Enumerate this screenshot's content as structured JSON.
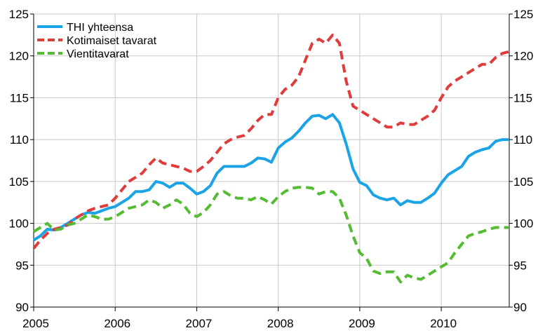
{
  "chart_data": {
    "type": "line",
    "title": "",
    "xlabel": "",
    "ylabel": "",
    "xlim": [
      2005.0,
      2010.8333
    ],
    "ylim": [
      90,
      125
    ],
    "yticks": [
      "90",
      "95",
      "100",
      "105",
      "110",
      "115",
      "120",
      "125"
    ],
    "xticks": [
      "2005",
      "2006",
      "2007",
      "2008",
      "2009",
      "2010"
    ],
    "grid": true,
    "dual_y_axis_labels": true,
    "legend_position": "top-left",
    "series": [
      {
        "name": "THI yhteensa",
        "color": "#1aa3e6",
        "dash": "solid",
        "x": [
          2005.0,
          2005.083,
          2005.167,
          2005.25,
          2005.333,
          2005.417,
          2005.5,
          2005.583,
          2005.667,
          2005.75,
          2005.833,
          2005.917,
          2006.0,
          2006.083,
          2006.167,
          2006.25,
          2006.333,
          2006.417,
          2006.5,
          2006.583,
          2006.667,
          2006.75,
          2006.833,
          2006.917,
          2007.0,
          2007.083,
          2007.167,
          2007.25,
          2007.333,
          2007.417,
          2007.5,
          2007.583,
          2007.667,
          2007.75,
          2007.833,
          2007.917,
          2008.0,
          2008.083,
          2008.167,
          2008.25,
          2008.333,
          2008.417,
          2008.5,
          2008.583,
          2008.667,
          2008.75,
          2008.833,
          2008.917,
          2009.0,
          2009.083,
          2009.167,
          2009.25,
          2009.333,
          2009.417,
          2009.5,
          2009.583,
          2009.667,
          2009.75,
          2009.833,
          2009.917,
          2010.0,
          2010.083,
          2010.167,
          2010.25,
          2010.333,
          2010.417,
          2010.5,
          2010.583,
          2010.667,
          2010.75,
          2010.833
        ],
        "values": [
          98.0,
          98.5,
          99.3,
          99.2,
          99.5,
          100.0,
          100.5,
          101.0,
          101.3,
          101.2,
          101.5,
          101.8,
          102.0,
          102.5,
          103.0,
          103.8,
          103.8,
          104.0,
          105.0,
          104.8,
          104.3,
          104.8,
          104.8,
          104.2,
          103.5,
          103.8,
          104.5,
          106.0,
          106.8,
          106.8,
          106.8,
          106.8,
          107.2,
          107.8,
          107.7,
          107.3,
          109.0,
          109.7,
          110.2,
          111.0,
          112.0,
          112.8,
          112.9,
          112.5,
          113.0,
          112.0,
          109.5,
          106.5,
          104.9,
          104.5,
          103.4,
          103.0,
          102.8,
          103.0,
          102.2,
          102.7,
          102.5,
          102.5,
          103.0,
          103.6,
          104.8,
          105.8,
          106.3,
          106.8,
          108.0,
          108.5,
          108.8,
          109.0,
          109.8,
          110.0,
          110.0
        ]
      },
      {
        "name": "Kotimaiset tavarat",
        "color": "#e03c3c",
        "dash": "dashed",
        "x": [
          2005.0,
          2005.083,
          2005.167,
          2005.25,
          2005.333,
          2005.417,
          2005.5,
          2005.583,
          2005.667,
          2005.75,
          2005.833,
          2005.917,
          2006.0,
          2006.083,
          2006.167,
          2006.25,
          2006.333,
          2006.417,
          2006.5,
          2006.583,
          2006.667,
          2006.75,
          2006.833,
          2006.917,
          2007.0,
          2007.083,
          2007.167,
          2007.25,
          2007.333,
          2007.417,
          2007.5,
          2007.583,
          2007.667,
          2007.75,
          2007.833,
          2007.917,
          2008.0,
          2008.083,
          2008.167,
          2008.25,
          2008.333,
          2008.417,
          2008.5,
          2008.583,
          2008.667,
          2008.75,
          2008.833,
          2008.917,
          2009.0,
          2009.083,
          2009.167,
          2009.25,
          2009.333,
          2009.417,
          2009.5,
          2009.583,
          2009.667,
          2009.75,
          2009.833,
          2009.917,
          2010.0,
          2010.083,
          2010.167,
          2010.25,
          2010.333,
          2010.417,
          2010.5,
          2010.583,
          2010.667,
          2010.75,
          2010.833
        ],
        "values": [
          97.0,
          98.0,
          98.8,
          99.3,
          99.5,
          99.8,
          100.5,
          101.0,
          101.5,
          101.8,
          102.0,
          102.2,
          103.0,
          104.0,
          105.0,
          105.5,
          106.0,
          107.0,
          107.8,
          107.2,
          107.0,
          106.8,
          106.6,
          106.2,
          106.2,
          106.8,
          107.5,
          108.5,
          109.5,
          110.0,
          110.3,
          110.5,
          111.3,
          112.3,
          113.0,
          113.0,
          115.0,
          116.0,
          116.5,
          117.5,
          119.5,
          121.5,
          122.0,
          121.5,
          122.5,
          121.5,
          117.0,
          114.0,
          113.5,
          113.0,
          112.5,
          112.0,
          111.5,
          111.5,
          112.0,
          111.8,
          111.8,
          112.3,
          112.8,
          113.5,
          115.0,
          116.3,
          117.0,
          117.5,
          118.0,
          118.5,
          119.0,
          119.0,
          119.8,
          120.3,
          120.5
        ]
      },
      {
        "name": "Vientitavarat",
        "color": "#55bb33",
        "dash": "dashed",
        "x": [
          2005.0,
          2005.083,
          2005.167,
          2005.25,
          2005.333,
          2005.417,
          2005.5,
          2005.583,
          2005.667,
          2005.75,
          2005.833,
          2005.917,
          2006.0,
          2006.083,
          2006.167,
          2006.25,
          2006.333,
          2006.417,
          2006.5,
          2006.583,
          2006.667,
          2006.75,
          2006.833,
          2006.917,
          2007.0,
          2007.083,
          2007.167,
          2007.25,
          2007.333,
          2007.417,
          2007.5,
          2007.583,
          2007.667,
          2007.75,
          2007.833,
          2007.917,
          2008.0,
          2008.083,
          2008.167,
          2008.25,
          2008.333,
          2008.417,
          2008.5,
          2008.583,
          2008.667,
          2008.75,
          2008.833,
          2008.917,
          2009.0,
          2009.083,
          2009.167,
          2009.25,
          2009.333,
          2009.417,
          2009.5,
          2009.583,
          2009.667,
          2009.75,
          2009.833,
          2009.917,
          2010.0,
          2010.083,
          2010.167,
          2010.25,
          2010.333,
          2010.417,
          2010.5,
          2010.583,
          2010.667,
          2010.75,
          2010.833
        ],
        "values": [
          99.0,
          99.5,
          100.0,
          99.2,
          99.3,
          99.8,
          100.0,
          100.5,
          101.0,
          100.8,
          100.5,
          100.5,
          100.8,
          101.3,
          101.8,
          102.0,
          102.2,
          102.8,
          102.5,
          101.8,
          102.2,
          102.8,
          102.3,
          101.2,
          100.8,
          101.3,
          102.2,
          103.5,
          103.8,
          103.3,
          103.0,
          103.0,
          102.8,
          103.2,
          102.8,
          102.3,
          103.2,
          103.8,
          104.2,
          104.3,
          104.3,
          104.2,
          103.5,
          103.8,
          103.8,
          103.0,
          101.0,
          98.5,
          96.5,
          95.8,
          94.3,
          94.0,
          94.2,
          94.2,
          93.0,
          93.8,
          93.5,
          93.3,
          93.8,
          94.3,
          94.8,
          95.3,
          96.5,
          97.5,
          98.5,
          98.8,
          99.0,
          99.3,
          99.5,
          99.5,
          99.5
        ]
      }
    ]
  }
}
